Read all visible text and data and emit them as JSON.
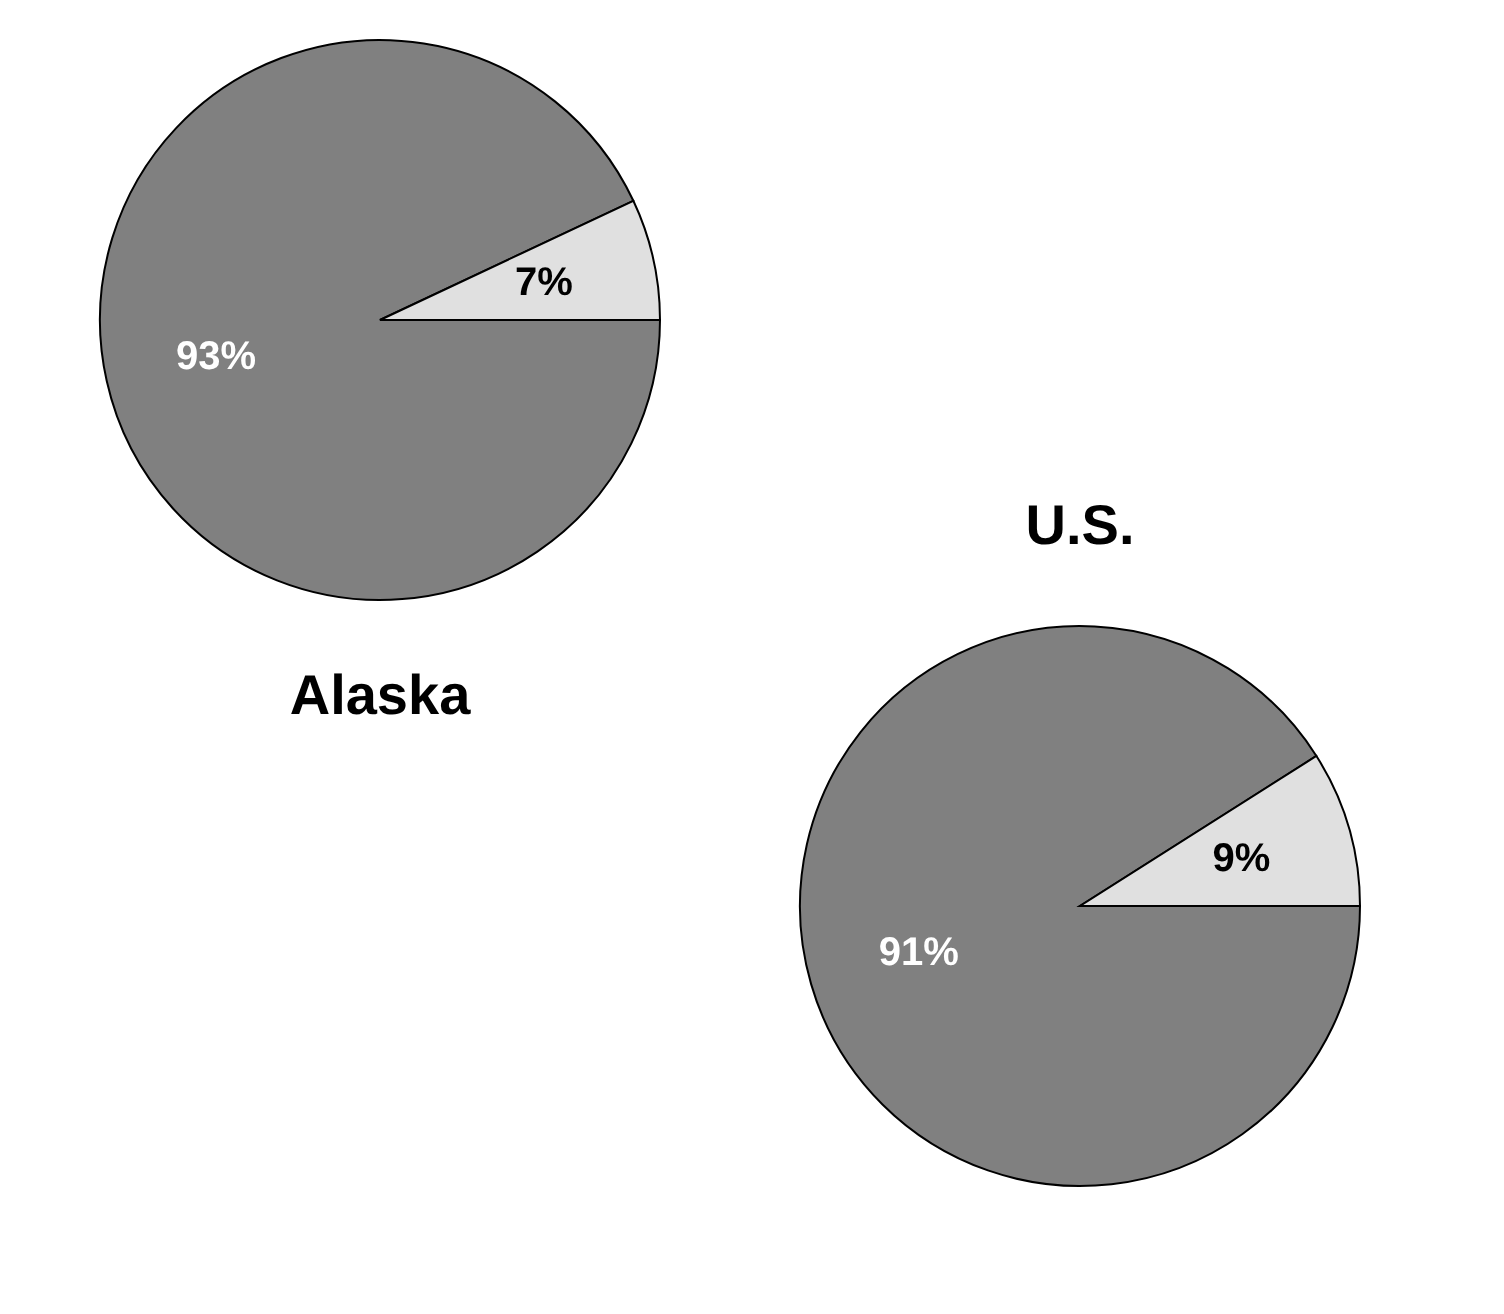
{
  "chart_data": [
    {
      "type": "pie",
      "title": "Alaska",
      "categories": [
        null,
        null
      ],
      "values": [
        93,
        7
      ],
      "colors": [
        "#808080",
        "#e0e0e0"
      ],
      "value_labels": [
        "93%",
        "7%"
      ],
      "legend": false
    },
    {
      "type": "pie",
      "title": "U.S.",
      "categories": [
        null,
        null
      ],
      "values": [
        91,
        9
      ],
      "colors": [
        "#808080",
        "#e0e0e0"
      ],
      "value_labels": [
        "91%",
        "9%"
      ],
      "legend": false
    }
  ]
}
